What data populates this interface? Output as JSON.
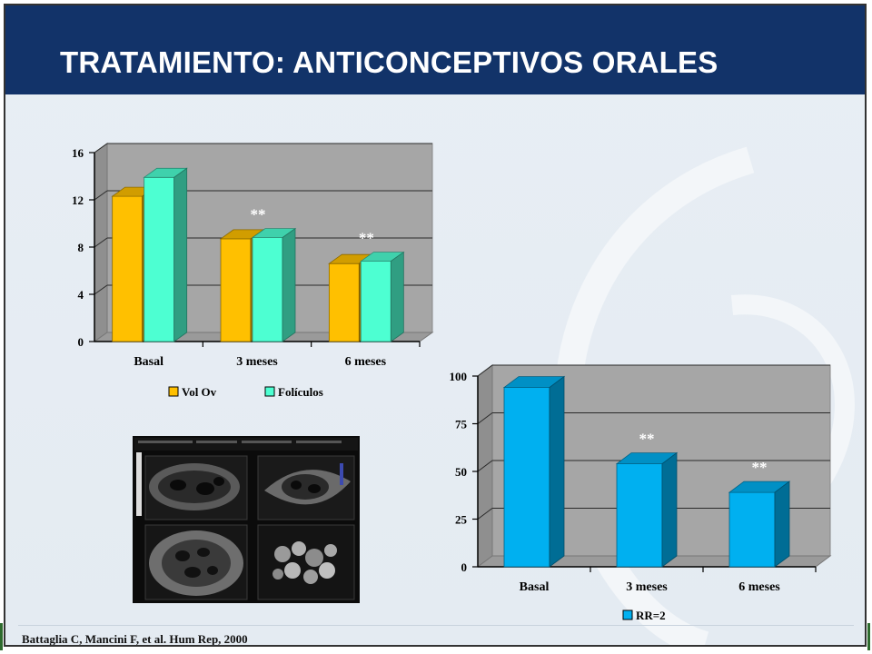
{
  "title": "TRATAMIENTO: ANTICONCEPTIVOS ORALES",
  "citation": "Battaglia C, Mancini F,  et al. Hum Rep, 2000",
  "colors": {
    "title_bar": "#123369",
    "vol_ov": "#ffc000",
    "foliculos": "#4dffd2",
    "rr": "#00b0f0",
    "plot_bg": "#a6a6a6"
  },
  "chart_data": [
    {
      "type": "bar",
      "categories": [
        "Basal",
        "3 meses",
        "6 meses"
      ],
      "series": [
        {
          "name": "Vol Ov",
          "values": [
            12.3,
            8.7,
            6.6
          ]
        },
        {
          "name": "Folículos",
          "values": [
            13.9,
            8.8,
            6.8
          ]
        }
      ],
      "ylim": [
        0,
        16
      ],
      "yticks": [
        "0",
        "4",
        "8",
        "12",
        "16"
      ],
      "annotations": [
        "",
        "**",
        "**"
      ],
      "legend": "bottom",
      "grid": true
    },
    {
      "type": "bar",
      "categories": [
        "Basal",
        "3 meses",
        "6 meses"
      ],
      "series": [
        {
          "name": "RR=2",
          "values": [
            94,
            54,
            39
          ]
        }
      ],
      "ylim": [
        0,
        100
      ],
      "yticks": [
        "0",
        "25",
        "50",
        "75",
        "100"
      ],
      "annotations": [
        "",
        "**",
        "**"
      ],
      "legend": "bottom",
      "grid": true
    }
  ]
}
